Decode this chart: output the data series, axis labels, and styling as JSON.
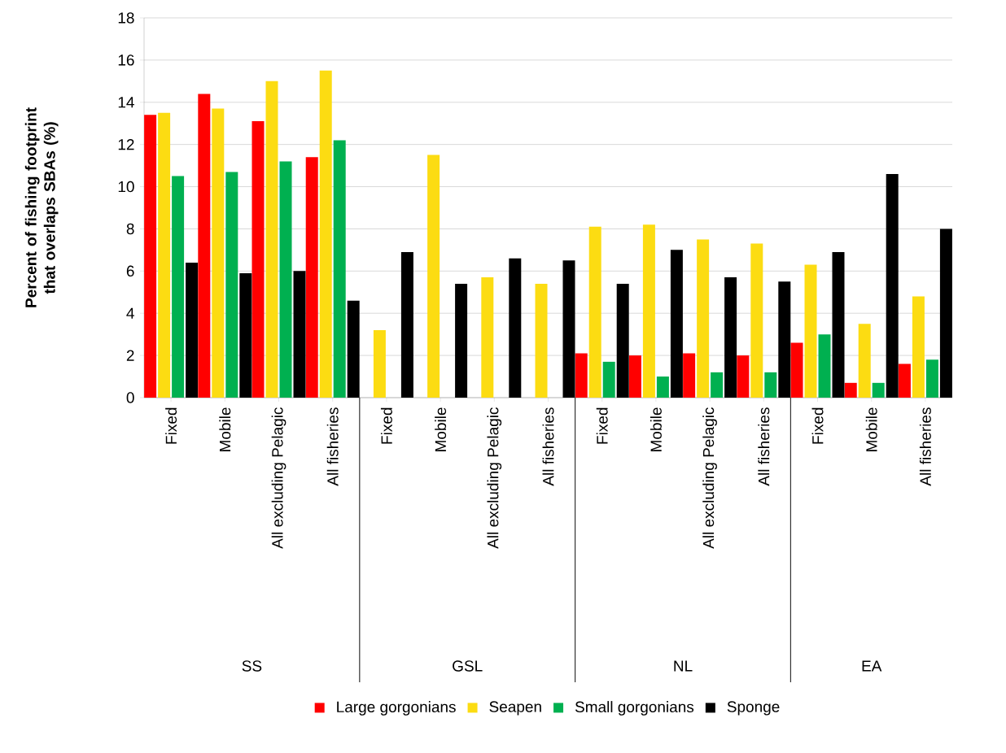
{
  "chart_data": {
    "type": "bar",
    "ylabel": "Percent of fishing footprint that overlaps SBAs (%)",
    "categories": [
      "Fixed",
      "Mobile",
      "All excluding Pelagic",
      "All fisheries",
      "Fixed",
      "Mobile",
      "All excluding Pelagic",
      "All fisheries",
      "Fixed",
      "Mobile",
      "All excluding Pelagic",
      "All fisheries",
      "Fixed",
      "Mobile",
      "All fisheries"
    ],
    "series": [
      {
        "name": "Large gorgonians",
        "color": "#ff0000",
        "values": [
          13.4,
          14.4,
          13.1,
          11.4,
          null,
          null,
          null,
          null,
          2.1,
          2.0,
          2.1,
          2.0,
          2.6,
          0.7,
          1.6
        ]
      },
      {
        "name": "Seapen",
        "color": "#fcdc12",
        "values": [
          13.5,
          13.7,
          15.0,
          15.5,
          3.2,
          11.5,
          5.7,
          5.4,
          8.1,
          8.2,
          7.5,
          7.3,
          6.3,
          3.5,
          4.8
        ]
      },
      {
        "name": "Small gorgonians",
        "color": "#00b050",
        "values": [
          10.5,
          10.7,
          11.2,
          12.2,
          null,
          null,
          null,
          null,
          1.7,
          1.0,
          1.2,
          1.2,
          3.0,
          0.7,
          1.8
        ]
      },
      {
        "name": "Sponge",
        "color": "#000000",
        "values": [
          6.4,
          5.9,
          6.0,
          4.6,
          6.9,
          5.4,
          6.6,
          6.5,
          5.4,
          7.0,
          5.7,
          5.5,
          6.9,
          10.6,
          8.0
        ]
      }
    ],
    "annotations": [
      "SS",
      "GSL",
      "NL",
      "EA"
    ],
    "ylim": [
      0,
      18
    ],
    "yticks": [
      0,
      2,
      4,
      6,
      8,
      10,
      12,
      14,
      16,
      18
    ],
    "grid": "y",
    "legend": "bottom"
  }
}
